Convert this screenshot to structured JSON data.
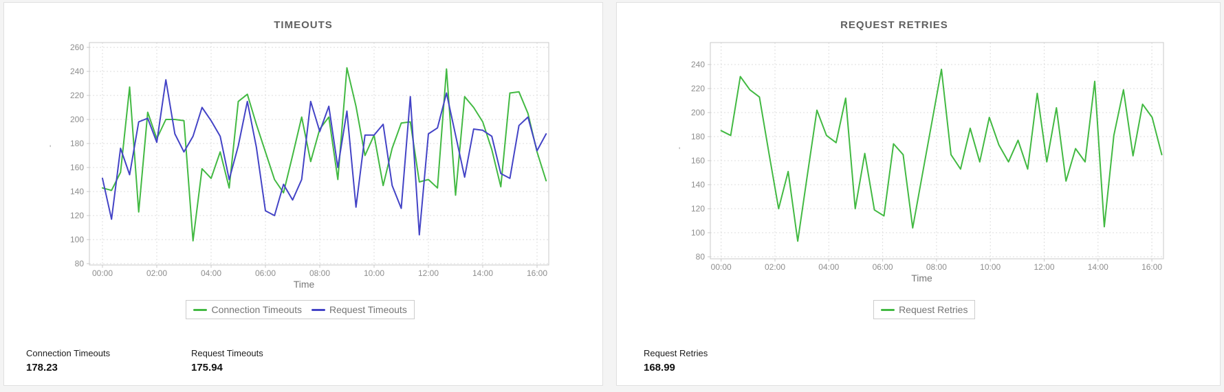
{
  "panels": [
    {
      "title": "TIMEOUTS",
      "xlabel": "Time",
      "axis_marker": "'",
      "stats": [
        {
          "label": "Connection Timeouts",
          "value": "178.23"
        },
        {
          "label": "Request Timeouts",
          "value": "175.94"
        }
      ]
    },
    {
      "title": "REQUEST RETRIES",
      "xlabel": "Time",
      "axis_marker": "'",
      "stats": [
        {
          "label": "Request Retries",
          "value": "168.99"
        }
      ]
    }
  ],
  "colors": {
    "green_series": "#42b942",
    "blue_series": "#4343c6",
    "grid": "#dddddd",
    "plot_border": "#c8c8c8",
    "tick_label": "#8d8d8d"
  },
  "chart_data": [
    {
      "type": "line",
      "title": "TIMEOUTS",
      "xlabel": "Time",
      "x_ticks": [
        "00:00",
        "02:00",
        "04:00",
        "06:00",
        "08:00",
        "10:00",
        "12:00",
        "14:00",
        "16:00"
      ],
      "y_ticks": [
        260,
        240,
        220,
        200,
        180,
        160,
        140,
        120,
        100,
        80
      ],
      "ylim": [
        80,
        260
      ],
      "grid": true,
      "legend_position": "bottom",
      "series": [
        {
          "name": "Connection Timeouts",
          "color": "#42b942",
          "values": [
            143,
            141,
            156,
            227,
            123,
            206,
            184,
            200,
            200,
            199,
            99,
            159,
            151,
            173,
            143,
            215,
            221,
            196,
            173,
            150,
            139,
            170,
            202,
            165,
            192,
            202,
            150,
            243,
            211,
            170,
            187,
            145,
            176,
            197,
            198,
            148,
            150,
            143,
            242,
            137,
            219,
            210,
            198,
            175,
            144,
            222,
            223,
            205,
            173,
            149
          ]
        },
        {
          "name": "Request Timeouts",
          "color": "#4343c6",
          "values": [
            151,
            117,
            176,
            154,
            198,
            201,
            181,
            233,
            188,
            173,
            186,
            210,
            199,
            186,
            150,
            178,
            215,
            177,
            124,
            120,
            146,
            133,
            150,
            215,
            190,
            211,
            160,
            207,
            127,
            187,
            187,
            196,
            145,
            126,
            219,
            104,
            188,
            193,
            222,
            187,
            152,
            192,
            191,
            186,
            155,
            151,
            195,
            202,
            174,
            188
          ]
        }
      ]
    },
    {
      "type": "line",
      "title": "REQUEST RETRIES",
      "xlabel": "Time",
      "x_ticks": [
        "00:00",
        "02:00",
        "04:00",
        "06:00",
        "08:00",
        "10:00",
        "12:00",
        "14:00",
        "16:00"
      ],
      "y_ticks": [
        240,
        220,
        200,
        180,
        160,
        140,
        120,
        100,
        80
      ],
      "ylim": [
        80,
        240
      ],
      "grid": true,
      "legend_position": "bottom",
      "series": [
        {
          "name": "Request Retries",
          "color": "#42b942",
          "values": [
            185,
            181,
            230,
            219,
            213,
            166,
            120,
            151,
            93,
            148,
            202,
            181,
            175,
            212,
            120,
            166,
            119,
            114,
            174,
            165,
            104,
            148,
            192,
            236,
            165,
            153,
            187,
            159,
            196,
            173,
            159,
            177,
            153,
            216,
            159,
            204,
            143,
            170,
            159,
            226,
            105,
            181,
            219,
            164,
            207,
            196,
            165
          ]
        }
      ]
    }
  ]
}
